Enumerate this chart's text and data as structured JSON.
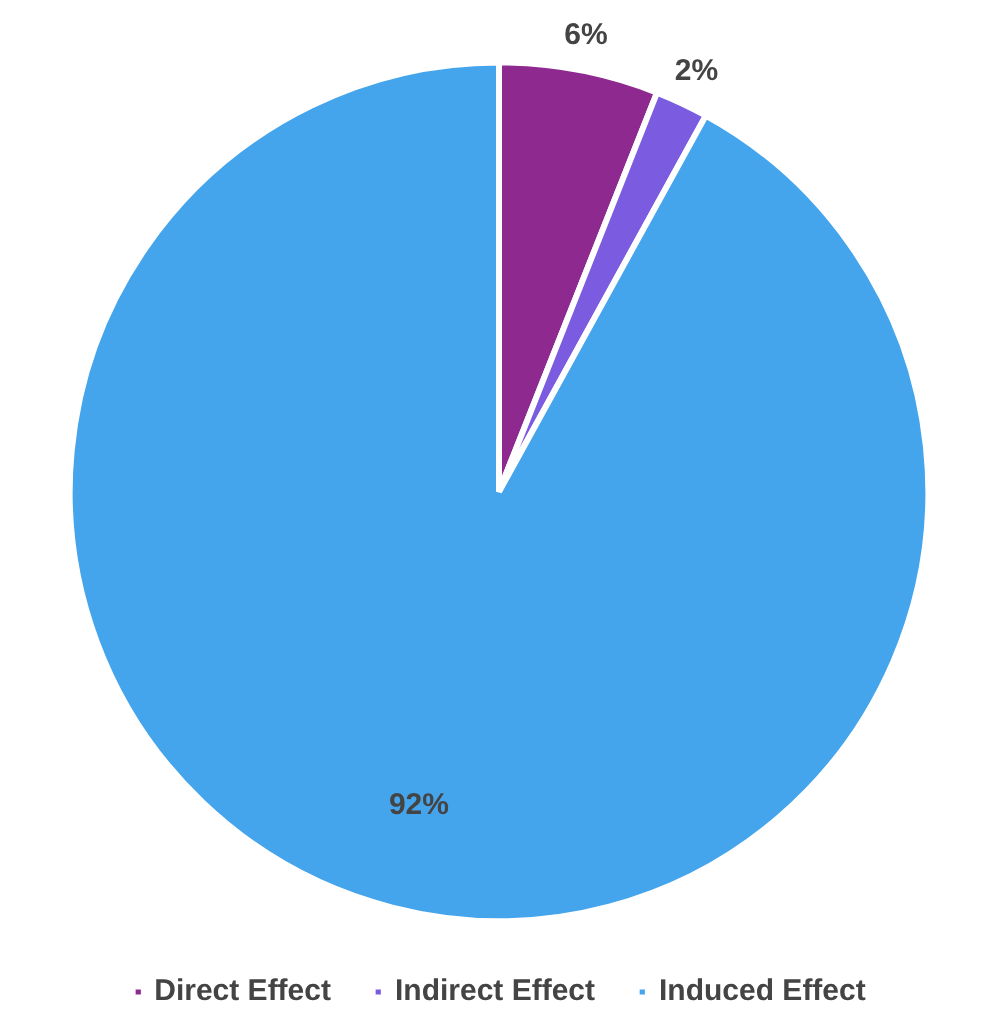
{
  "chart_data": {
    "type": "pie",
    "categories": [
      "Direct Effect",
      "Indirect Effect",
      "Induced Effect"
    ],
    "values": [
      6,
      2,
      92
    ],
    "colors": [
      "#8e2a8f",
      "#7b5ce0",
      "#45a5ec"
    ],
    "value_labels": [
      "6%",
      "2%",
      "92%"
    ],
    "legend": "bottom"
  }
}
